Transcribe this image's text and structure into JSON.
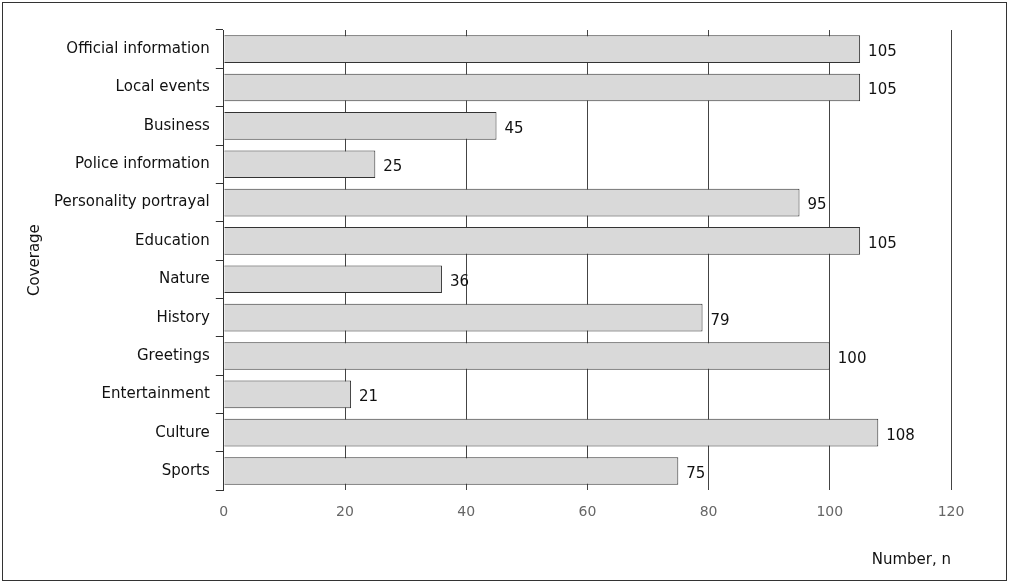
{
  "chart_data": {
    "type": "bar",
    "orientation": "horizontal",
    "xlabel": "Number, n",
    "ylabel": "Coverage",
    "categories": [
      "Official information",
      "Local events",
      "Business",
      "Police information",
      "Personality portrayal",
      "Education",
      "Nature",
      "History",
      "Greetings",
      "Entertainment",
      "Culture",
      "Sports"
    ],
    "values": [
      105,
      105,
      45,
      25,
      95,
      105,
      36,
      79,
      100,
      21,
      108,
      75
    ],
    "color": "#d9d9d9",
    "xlim": [
      0,
      120
    ],
    "xticks": [
      0,
      20,
      40,
      60,
      80,
      100,
      120
    ],
    "grid": "x",
    "data_labels": true,
    "legend": false
  }
}
